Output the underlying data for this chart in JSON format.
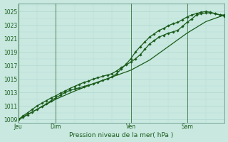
{
  "bg_color": "#c8e8e0",
  "grid_color": "#aad4cc",
  "line_color": "#1a5c1a",
  "marker_color": "#1a5c1a",
  "ylim": [
    1008.5,
    1026.2
  ],
  "ylabel_ticks": [
    1009,
    1011,
    1013,
    1015,
    1017,
    1019,
    1021,
    1023,
    1025
  ],
  "xlabel": "Pression niveau de la mer( hPa )",
  "day_labels": [
    "Jeu",
    "Dim",
    "Ven",
    "Sam"
  ],
  "day_positions": [
    0,
    48,
    144,
    216
  ],
  "total_hours": 264,
  "line1": {
    "x": [
      0,
      6,
      12,
      18,
      24,
      30,
      36,
      42,
      48,
      54,
      60,
      66,
      72,
      78,
      84,
      90,
      96,
      102,
      108,
      114,
      120,
      126,
      132,
      138,
      144,
      150,
      156,
      162,
      168,
      174,
      180,
      186,
      192,
      198,
      204,
      210,
      216,
      222,
      228,
      234,
      240,
      246,
      252,
      258,
      264
    ],
    "y": [
      1009.0,
      1009.5,
      1010.0,
      1010.5,
      1011.0,
      1011.4,
      1011.8,
      1012.2,
      1012.5,
      1012.9,
      1013.2,
      1013.6,
      1013.9,
      1014.2,
      1014.5,
      1014.7,
      1015.0,
      1015.2,
      1015.4,
      1015.6,
      1015.8,
      1016.2,
      1016.7,
      1017.1,
      1017.5,
      1018.0,
      1018.6,
      1019.4,
      1020.2,
      1020.7,
      1021.2,
      1021.5,
      1021.8,
      1022.0,
      1022.2,
      1022.8,
      1023.4,
      1023.9,
      1024.5,
      1024.7,
      1024.8,
      1024.8,
      1024.7,
      1024.5,
      1024.3
    ]
  },
  "line2": {
    "x": [
      0,
      6,
      12,
      18,
      24,
      30,
      36,
      42,
      48,
      54,
      60,
      66,
      72,
      78,
      84,
      90,
      96,
      102,
      108,
      114,
      120,
      126,
      132,
      138,
      144,
      150,
      156,
      162,
      168,
      174,
      180,
      186,
      192,
      198,
      204,
      210,
      216,
      222,
      228,
      234,
      240,
      246,
      252,
      258,
      264
    ],
    "y": [
      1009.0,
      1009.3,
      1009.7,
      1010.1,
      1010.5,
      1010.9,
      1011.3,
      1011.8,
      1012.2,
      1012.6,
      1013.0,
      1013.3,
      1013.5,
      1013.7,
      1013.9,
      1014.1,
      1014.3,
      1014.5,
      1014.8,
      1015.0,
      1015.3,
      1015.8,
      1016.5,
      1017.2,
      1018.0,
      1019.0,
      1019.8,
      1020.5,
      1021.2,
      1021.7,
      1022.2,
      1022.5,
      1022.9,
      1023.2,
      1023.4,
      1023.8,
      1024.2,
      1024.5,
      1024.7,
      1024.9,
      1025.0,
      1024.9,
      1024.7,
      1024.5,
      1024.5
    ]
  },
  "line3": {
    "x": [
      0,
      24,
      48,
      72,
      96,
      120,
      144,
      168,
      192,
      216,
      240,
      264
    ],
    "y": [
      1009.0,
      1010.5,
      1012.0,
      1013.2,
      1014.3,
      1015.3,
      1016.3,
      1017.8,
      1019.8,
      1021.8,
      1023.5,
      1024.5
    ]
  }
}
